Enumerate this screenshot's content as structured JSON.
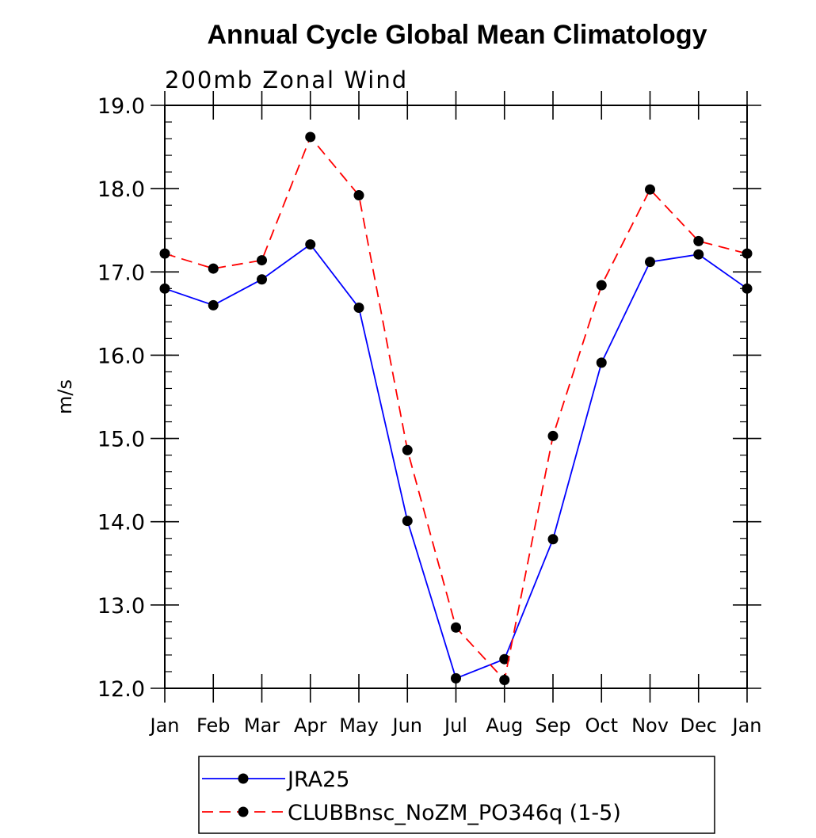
{
  "chart_data": {
    "type": "line",
    "title": "Annual Cycle Global Mean Climatology",
    "subtitle": "200mb Zonal Wind",
    "xlabel": "",
    "ylabel": "m/s",
    "categories": [
      "Jan",
      "Feb",
      "Mar",
      "Apr",
      "May",
      "Jun",
      "Jul",
      "Aug",
      "Sep",
      "Oct",
      "Nov",
      "Dec",
      "Jan"
    ],
    "ylim": [
      12.0,
      19.0
    ],
    "yticks": [
      "12.0",
      "13.0",
      "14.0",
      "15.0",
      "16.0",
      "17.0",
      "18.0",
      "19.0"
    ],
    "grid": false,
    "legend_position": "bottom",
    "series": [
      {
        "name": "JRA25",
        "color": "#0000ff",
        "dash": "solid",
        "marker": "filled-circle",
        "values": [
          16.8,
          16.6,
          16.91,
          17.33,
          16.57,
          14.01,
          12.12,
          12.35,
          13.79,
          15.91,
          17.12,
          17.21,
          16.8
        ]
      },
      {
        "name": "CLUBBnsc_NoZM_PO346q (1-5)",
        "color": "#ff0000",
        "dash": "dashed",
        "marker": "filled-circle",
        "values": [
          17.22,
          17.04,
          17.14,
          18.62,
          17.92,
          14.86,
          12.73,
          12.1,
          15.03,
          16.84,
          17.99,
          17.37,
          17.22
        ]
      }
    ]
  }
}
